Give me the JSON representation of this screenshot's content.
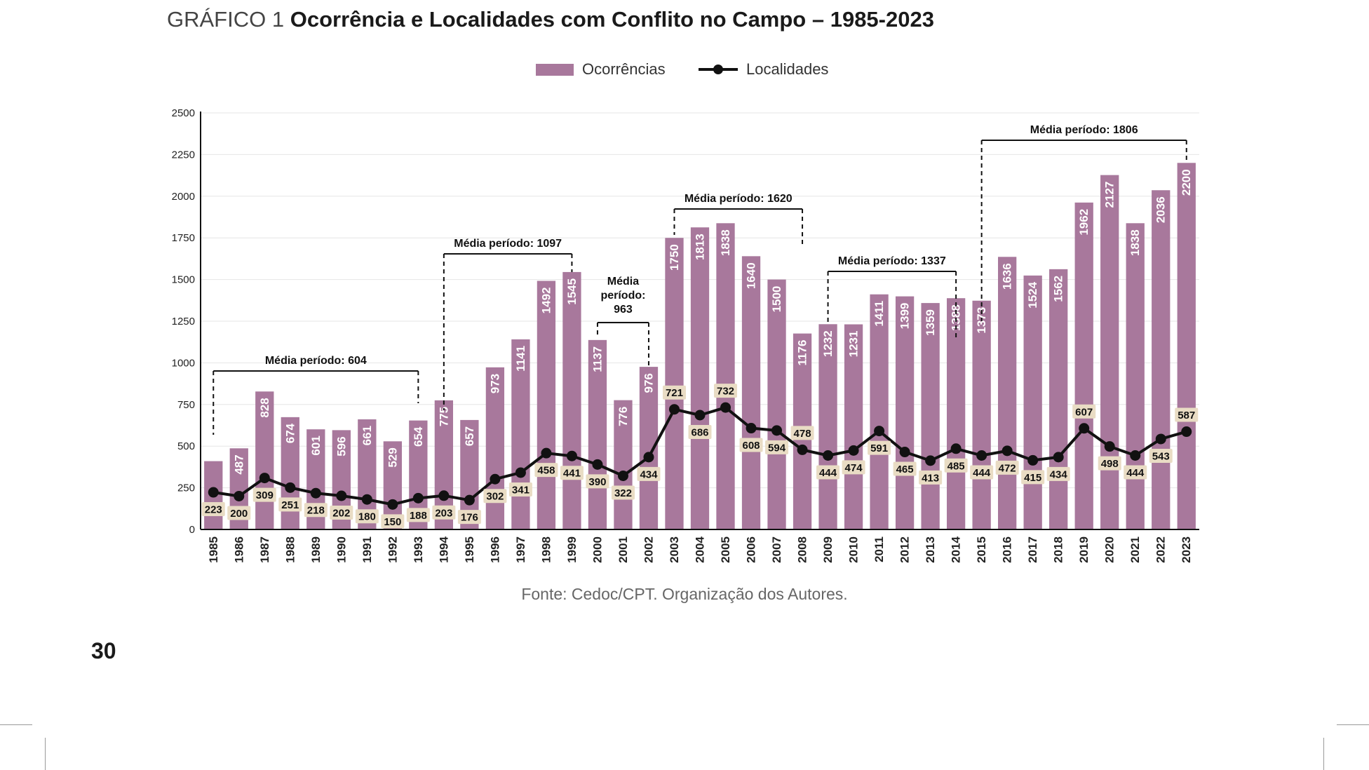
{
  "header": {
    "prefix": "GRÁFICO 1",
    "title": "Ocorrência e Localidades com Conflito no Campo – 1985-2023"
  },
  "colors": {
    "bar": "#a8789c",
    "line": "#111111",
    "label_bg": "#e9dcc4",
    "grid": "#e6e6e6"
  },
  "chart_data": {
    "type": "bar",
    "categories": [
      "1985",
      "1986",
      "1987",
      "1988",
      "1989",
      "1990",
      "1991",
      "1992",
      "1993",
      "1994",
      "1995",
      "1996",
      "1997",
      "1998",
      "1999",
      "2000",
      "2001",
      "2002",
      "2003",
      "2004",
      "2005",
      "2006",
      "2007",
      "2008",
      "2009",
      "2010",
      "2011",
      "2012",
      "2013",
      "2014",
      "2015",
      "2016",
      "2017",
      "2018",
      "2019",
      "2020",
      "2021",
      "2022",
      "2023"
    ],
    "series": [
      {
        "name": "Ocorrências",
        "type": "bar",
        "values": [
          null,
          487,
          828,
          674,
          601,
          596,
          661,
          529,
          654,
          775,
          657,
          973,
          1141,
          1492,
          1545,
          1137,
          776,
          976,
          1750,
          1813,
          1838,
          1640,
          1500,
          1176,
          1232,
          1231,
          1411,
          1399,
          1359,
          1388,
          1373,
          1636,
          1524,
          1562,
          1962,
          2127,
          1838,
          2036,
          2200
        ]
      },
      {
        "name": "Localidades",
        "type": "line",
        "values": [
          223,
          200,
          309,
          251,
          218,
          202,
          180,
          150,
          188,
          203,
          176,
          302,
          341,
          458,
          441,
          390,
          322,
          434,
          721,
          686,
          732,
          608,
          594,
          478,
          444,
          474,
          591,
          465,
          413,
          485,
          444,
          472,
          415,
          434,
          607,
          498,
          444,
          543,
          587
        ]
      }
    ],
    "yticks": [
      0,
      250,
      500,
      750,
      1000,
      1250,
      1500,
      1750,
      2000,
      2250,
      2500
    ],
    "ylim": [
      0,
      2500
    ],
    "legend_position": "top-center",
    "annotations": [
      {
        "label": "Média período: 604",
        "start": "1985",
        "end": "1993"
      },
      {
        "label": "Média período: 1097",
        "start": "1994",
        "end": "1999"
      },
      {
        "label": "Média período: 963",
        "start": "2000",
        "end": "2002"
      },
      {
        "label": "Média período: 1620",
        "start": "2003",
        "end": "2008"
      },
      {
        "label": "Média período: 1337",
        "start": "2009",
        "end": "2014"
      },
      {
        "label": "Média período: 1806",
        "start": "2015",
        "end": "2023"
      }
    ]
  },
  "source": "Fonte: Cedoc/CPT. Organização dos Autores.",
  "page_number": "30"
}
